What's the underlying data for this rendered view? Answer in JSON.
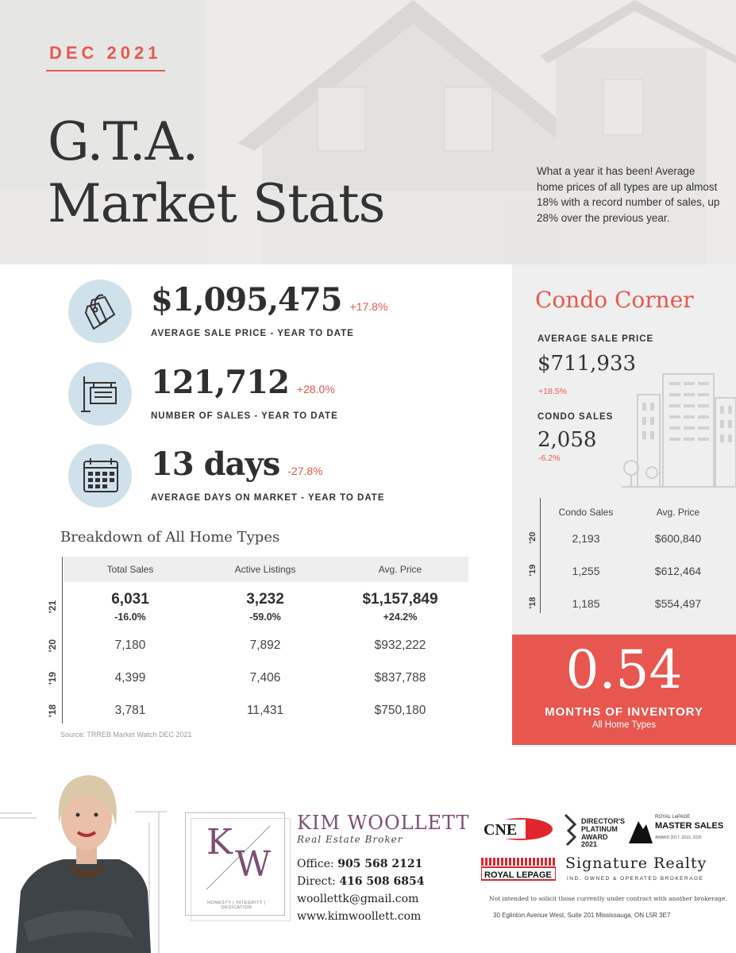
{
  "header": {
    "date": "DEC 2021",
    "title_line1": "G.T.A.",
    "title_line2": "Market Stats",
    "intro": "What a year it has been! Average home prices of all types are up almost 18% with a record number of sales, up 28% over the previous year."
  },
  "stats": [
    {
      "value": "$1,095,475",
      "change": "+17.8%",
      "label": "AVERAGE SALE PRICE - YEAR TO DATE",
      "icon": "price-tag-icon"
    },
    {
      "value": "121,712",
      "change": "+28.0%",
      "label": "NUMBER OF SALES - YEAR TO DATE",
      "icon": "sale-sign-icon"
    },
    {
      "value": "13 days",
      "change": "-27.8%",
      "label": "AVERAGE DAYS ON MARKET - YEAR TO DATE",
      "icon": "calendar-icon"
    }
  ],
  "breakdown": {
    "title": "Breakdown of All Home Types",
    "columns": [
      "Total Sales",
      "Active Listings",
      "Avg. Price"
    ],
    "current": {
      "year": "'21",
      "values": [
        "6,031",
        "3,232",
        "$1,157,849"
      ],
      "changes": [
        "-16.0%",
        "-59.0%",
        "+24.2%"
      ]
    },
    "rows": [
      {
        "year": "'20",
        "values": [
          "7,180",
          "7,892",
          "$932,222"
        ]
      },
      {
        "year": "'19",
        "values": [
          "4,399",
          "7,406",
          "$837,788"
        ]
      },
      {
        "year": "'18",
        "values": [
          "3,781",
          "11,431",
          "$750,180"
        ]
      }
    ],
    "source": "Source: TRREB Market Watch DEC 2021"
  },
  "condo": {
    "title": "Condo Corner",
    "avg_price_label": "AVERAGE SALE PRICE",
    "avg_price": "$711,933",
    "avg_price_change": "+18.5%",
    "sales_label": "CONDO SALES",
    "sales": "2,058",
    "sales_change": "-6.2%",
    "columns": [
      "Condo Sales",
      "Avg. Price"
    ],
    "rows": [
      {
        "year": "'20",
        "sales": "2,193",
        "price": "$600,840"
      },
      {
        "year": "'19",
        "sales": "1,255",
        "price": "$612,464"
      },
      {
        "year": "'18",
        "sales": "1,185",
        "price": "$554,497"
      }
    ]
  },
  "inventory": {
    "value": "0.54",
    "label": "MONTHS OF INVENTORY",
    "sub": "All Home Types"
  },
  "agent": {
    "logo_letters": [
      "K",
      "W"
    ],
    "logo_tagline": "HONESTY | INTEGRITY | DEDICATION",
    "name": "KIM WOOLLETT",
    "role": "Real Estate Broker",
    "office_label": "Office:",
    "office": "905 568 2121",
    "direct_label": "Direct:",
    "direct": "416 508 6854",
    "email": "woollettk@gmail.com",
    "website": "www.kimwoollett.com"
  },
  "brokerage": {
    "cne": "CNE",
    "award1": [
      "DIRECTOR'S",
      "PLATINUM",
      "AWARD 2021"
    ],
    "award2_top": "ROYAL LePAGE",
    "award2_main": "MASTER SALES",
    "award2_years": "AWARD 2017, 2019, 2020",
    "royal_lepage": "ROYAL LEPAGE",
    "name": "Signature Realty",
    "sub": "IND. OWNED & OPERATED BROKERAGE",
    "disclaimer": "Not intended to solicit those currently under contract with another brokerage.",
    "address": "30 Eglinton Avenue West, Suite 201 Mississauga, ON  L5R 3E7"
  },
  "colors": {
    "accent": "#e8574f",
    "icon_circle": "#cfe1ea",
    "brand_purple": "#7b4f75"
  }
}
